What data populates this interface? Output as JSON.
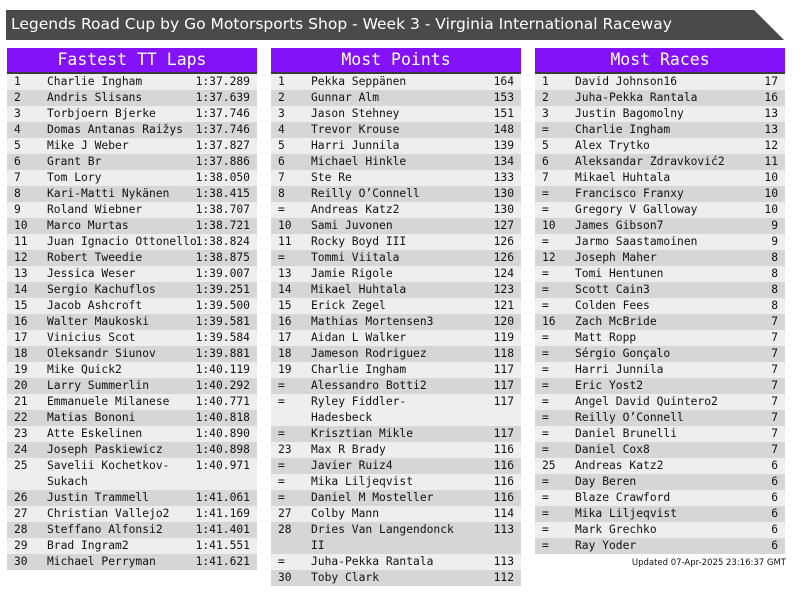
{
  "title": "Legends Road Cup by Go Motorsports Shop - Week 3 - Virginia International Raceway",
  "colors": {
    "header": "#8312f8",
    "title_bar": "#4a4a4a",
    "row_light": "#eeeeee",
    "row_dark": "#d6d6d6"
  },
  "panels": [
    {
      "heading": "Fastest TT Laps",
      "rows": [
        [
          "1",
          "Charlie Ingham",
          "1:37.289"
        ],
        [
          "2",
          "Andris Slisans",
          "1:37.639"
        ],
        [
          "3",
          "Torbjoern Bjerke",
          "1:37.746"
        ],
        [
          "4",
          "Domas Antanas Raižys",
          "1:37.746"
        ],
        [
          "5",
          "Mike J Weber",
          "1:37.827"
        ],
        [
          "6",
          "Grant Br",
          "1:37.886"
        ],
        [
          "7",
          "Tom Lory",
          "1:38.050"
        ],
        [
          "8",
          "Kari-Matti Nykänen",
          "1:38.415"
        ],
        [
          "9",
          "Roland Wiebner",
          "1:38.707"
        ],
        [
          "10",
          "Marco Murtas",
          "1:38.721"
        ],
        [
          "11",
          "Juan Ignacio Ottonello",
          "1:38.824"
        ],
        [
          "12",
          "Robert Tweedie",
          "1:38.875"
        ],
        [
          "13",
          "Jessica Weser",
          "1:39.007"
        ],
        [
          "14",
          "Sergio Kachuflos",
          "1:39.251"
        ],
        [
          "15",
          "Jacob Ashcroft",
          "1:39.500"
        ],
        [
          "16",
          "Walter Maukoski",
          "1:39.581"
        ],
        [
          "17",
          "Vinicius Scot",
          "1:39.584"
        ],
        [
          "18",
          "Oleksandr Siunov",
          "1:39.881"
        ],
        [
          "19",
          "Mike Quick2",
          "1:40.119"
        ],
        [
          "20",
          "Larry Summerlin",
          "1:40.292"
        ],
        [
          "21",
          "Emmanuele Milanese",
          "1:40.771"
        ],
        [
          "22",
          "Matias Bononi",
          "1:40.818"
        ],
        [
          "23",
          "Atte Eskelinen",
          "1:40.890"
        ],
        [
          "24",
          "Joseph Paskiewicz",
          "1:40.898"
        ],
        [
          "25",
          "Savelii Kochetkov-Sukach",
          "1:40.971"
        ],
        [
          "26",
          "Justin Trammell",
          "1:41.061"
        ],
        [
          "27",
          "Christian Vallejo2",
          "1:41.169"
        ],
        [
          "28",
          "Steffano Alfonsi2",
          "1:41.401"
        ],
        [
          "29",
          "Brad Ingram2",
          "1:41.551"
        ],
        [
          "30",
          "Michael Perryman",
          "1:41.621"
        ]
      ]
    },
    {
      "heading": "Most Points",
      "rows": [
        [
          "1",
          "Pekka Seppänen",
          "164"
        ],
        [
          "2",
          "Gunnar Alm",
          "153"
        ],
        [
          "3",
          "Jason Stehney",
          "151"
        ],
        [
          "4",
          "Trevor Krouse",
          "148"
        ],
        [
          "5",
          "Harri Junnila",
          "139"
        ],
        [
          "6",
          "Michael Hinkle",
          "134"
        ],
        [
          "7",
          "Ste Re",
          "133"
        ],
        [
          "8",
          "Reilly O’Connell",
          "130"
        ],
        [
          "=",
          "Andreas Katz2",
          "130"
        ],
        [
          "10",
          "Sami Juvonen",
          "127"
        ],
        [
          "11",
          "Rocky Boyd III",
          "126"
        ],
        [
          "=",
          "Tommi Viitala",
          "126"
        ],
        [
          "13",
          "Jamie Rigole",
          "124"
        ],
        [
          "14",
          "Mikael Huhtala",
          "123"
        ],
        [
          "15",
          "Erick Zegel",
          "121"
        ],
        [
          "16",
          "Mathias Mortensen3",
          "120"
        ],
        [
          "17",
          "Aidan L Walker",
          "119"
        ],
        [
          "18",
          "Jameson Rodriguez",
          "118"
        ],
        [
          "19",
          "Charlie Ingham",
          "117"
        ],
        [
          "=",
          "Alessandro Botti2",
          "117"
        ],
        [
          "=",
          "Ryley Fiddler-Hadesbeck",
          "117"
        ],
        [
          "=",
          "Krisztian Mikle",
          "117"
        ],
        [
          "23",
          "Max R Brady",
          "116"
        ],
        [
          "=",
          "Javier Ruiz4",
          "116"
        ],
        [
          "=",
          "Mika Liljeqvist",
          "116"
        ],
        [
          "=",
          "Daniel M Mosteller",
          "116"
        ],
        [
          "27",
          "Colby Mann",
          "114"
        ],
        [
          "28",
          "Dries Van Langendonck II",
          "113"
        ],
        [
          "=",
          "Juha-Pekka Rantala",
          "113"
        ],
        [
          "30",
          "Toby Clark",
          "112"
        ]
      ]
    },
    {
      "heading": "Most Races",
      "rows": [
        [
          "1",
          "David Johnson16",
          "17"
        ],
        [
          "2",
          "Juha-Pekka Rantala",
          "16"
        ],
        [
          "3",
          "Justin Bagomolny",
          "13"
        ],
        [
          "=",
          "Charlie Ingham",
          "13"
        ],
        [
          "5",
          "Alex Trytko",
          "12"
        ],
        [
          "6",
          "Aleksandar Zdravković2",
          "11"
        ],
        [
          "7",
          "Mikael Huhtala",
          "10"
        ],
        [
          "=",
          "Francisco Franxy",
          "10"
        ],
        [
          "=",
          "Gregory V Galloway",
          "10"
        ],
        [
          "10",
          "James Gibson7",
          "9"
        ],
        [
          "=",
          "Jarmo Saastamoinen",
          "9"
        ],
        [
          "12",
          "Joseph Maher",
          "8"
        ],
        [
          "=",
          "Tomi Hentunen",
          "8"
        ],
        [
          "=",
          "Scott Cain3",
          "8"
        ],
        [
          "=",
          "Colden Fees",
          "8"
        ],
        [
          "16",
          "Zach McBride",
          "7"
        ],
        [
          "=",
          "Matt Ropp",
          "7"
        ],
        [
          "=",
          "Sérgio Gonçalo",
          "7"
        ],
        [
          "=",
          "Harri Junnila",
          "7"
        ],
        [
          "=",
          "Eric Yost2",
          "7"
        ],
        [
          "=",
          "Angel David Quintero2",
          "7"
        ],
        [
          "=",
          "Reilly O’Connell",
          "7"
        ],
        [
          "=",
          "Daniel Brunelli",
          "7"
        ],
        [
          "=",
          "Daniel Cox8",
          "7"
        ],
        [
          "25",
          "Andreas Katz2",
          "6"
        ],
        [
          "=",
          "Day Beren",
          "6"
        ],
        [
          "=",
          "Blaze Crawford",
          "6"
        ],
        [
          "=",
          "Mika Liljeqvist",
          "6"
        ],
        [
          "=",
          "Mark Grechko",
          "6"
        ],
        [
          "=",
          "Ray Yoder",
          "6"
        ]
      ]
    }
  ],
  "updated": "Updated 07-Apr-2025 23:16:37 GMT"
}
